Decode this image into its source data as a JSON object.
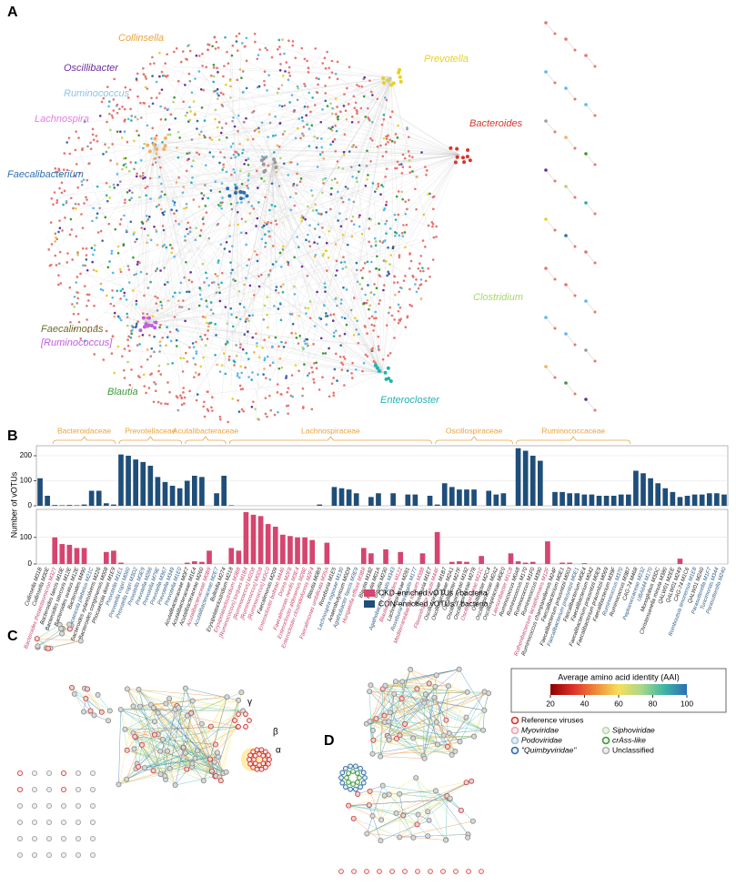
{
  "panel_a": {
    "letter": "A",
    "labels": [
      {
        "text": "Collinsella",
        "color": "#e8a33d"
      },
      {
        "text": "Oscillibacter",
        "color": "#6a2d9c"
      },
      {
        "text": "Ruminococcus",
        "color": "#8fc3e6"
      },
      {
        "text": "Lachnospira",
        "color": "#e57be0"
      },
      {
        "text": "Faecalibacterium",
        "color": "#2d6fb0"
      },
      {
        "text": "Faecalimonas",
        "color": "#6b6b2a"
      },
      {
        "text": "[Ruminococcus]",
        "color": "#c05ce0"
      },
      {
        "text": "Blautia",
        "color": "#3a9a35"
      },
      {
        "text": "Enterocloster",
        "color": "#1fb3b3"
      },
      {
        "text": "Clostridium",
        "color": "#a8d86a"
      },
      {
        "text": "Bacteroides",
        "color": "#d9352a"
      },
      {
        "text": "Prevotella",
        "color": "#e6d21e"
      }
    ]
  },
  "chart_data": {
    "type": "bar",
    "letter": "B",
    "ylabel": "Number of vOTUs",
    "categories": [
      "Collinsella M31B",
      "Collinsella M30E",
      "Bacteroides thetaiotaomicron M32T",
      "Bacteroides faecis M10E",
      "Bacteroides stercoris M12E",
      "Bacteroides ovatus M12E",
      "Bacteroides M490",
      "Phocaeicola plebeius M21C",
      "Bacteroides xylanisolvens M226",
      "Bacteroides congonensis M008",
      "Phocaeicola dorei M1E9",
      "Prevotella M1E1",
      "Prevotella copri M060",
      "Prevotella copri M3D2",
      "Prevotella M3E9",
      "Prevotella M286",
      "Prevotella M79E",
      "Prevotella M367",
      "Prevotella M349",
      "Prevotella M1E0",
      "Acutalibacteraceae M0F7",
      "Acutalibacteraceae M1E4",
      "Acutalibacteraceae M260",
      "Acutalibacteraceae M0B9",
      "Acutalibacteraceae M2E7",
      "Bulleidia M274",
      "Erysipelatoclostridium M218",
      "Erysipelatoclostridium M3B8",
      "[Ruminococcus] torques M1B4",
      "[Ruminococcus] M2D8",
      "[Ruminococcus] M0D8",
      "[Ruminococcus] M3C0",
      "Faecalimonas M209",
      "Enterocloster bolteae M446",
      "Dorea M2F8",
      "Faecalimonas nexilis M3E4",
      "Enterocloster aldenensis M28E",
      "Enterocloster clostridioformis M2F4",
      "Blautia M0B5",
      "Faecalimonas umbilicata M35A",
      "Roseburia M1E5",
      "Lachnospira rogosae M130",
      "Anaerobutyricum M0D9",
      "Agathobacter faecis M3E9",
      "Hungatella effluvii M3B8",
      "Blautia M182",
      "Blautia M01A",
      "Blautia M230",
      "Agathobacter rectalis M343",
      "Blautia coccoides M122",
      "Lachnospiraceae M281",
      "Roseburia intestinalis M177",
      "Mediterraneibacter torques M388",
      "Roseburia M1E7",
      "Flavonifractor plautii M44F",
      "Oscillospiraceae M1B7",
      "Oscillospiraceae M2A1",
      "Oscillibacter M27F",
      "Oscillospiraceae M192",
      "Oscillospiraceae M278",
      "Oscillospiraceae M21C",
      "Oscillibacter M2C4",
      "Oscillospiraceae M2A2",
      "Oscillospiraceae M0E0",
      "Lawsonibacter M1C8",
      "Ruminococcus M0A8",
      "Ruminococcus M170",
      "Ruminococcus M1F0",
      "Ruminococcus M390",
      "Ruthenibacterium lactatiformans M12F",
      "Ruminococcus champanellensis M24F",
      "Faecalibacterium M0E1",
      "Faecalibacterium prausnitzii M003",
      "Faecalibacterium prausnitzii M0E1",
      "Faecalibacterium M0E4",
      "Faecalibacterium M042",
      "Faecalibacterium prausnitzii M0E9",
      "Faecalibacterium prausnitzii M069",
      "Faecalibacterium M39F",
      "Ruminococcus M370",
      "Ruminococcus M3B7",
      "CAG-74 M468",
      "Peptococcaceae M232",
      "UBA644 M170",
      "Monoglobus M3DC",
      "Christensenella minuta M380",
      "QALW01 M2EE",
      "QALW01 M249",
      "CAG-74 M1C6",
      "Romboutsia timonensis M1E8",
      "QALW01 M2A0",
      "Parasutterella M1F7",
      "Turicimonas M344",
      "Parasutterella M240"
    ],
    "label_colors": [
      "#222",
      "#222",
      "#c8446a",
      "#222",
      "#222",
      "#222",
      "#222",
      "#2e5d87",
      "#222",
      "#222",
      "#222",
      "#2e5d87",
      "#2e5d87",
      "#2e5d87",
      "#2e5d87",
      "#2e5d87",
      "#2e5d87",
      "#2e5d87",
      "#2e5d87",
      "#2e5d87",
      "#222",
      "#222",
      "#222",
      "#c8446a",
      "#2e5d87",
      "#222",
      "#222",
      "#c8446a",
      "#c8446a",
      "#c8446a",
      "#c8446a",
      "#c8446a",
      "#222",
      "#c8446a",
      "#c8446a",
      "#c8446a",
      "#c8446a",
      "#c8446a",
      "#222",
      "#c8446a",
      "#222",
      "#2e5d87",
      "#222",
      "#2e5d87",
      "#c8446a",
      "#222",
      "#222",
      "#222",
      "#2e5d87",
      "#c8446a",
      "#222",
      "#2e5d87",
      "#c8446a",
      "#222",
      "#c8446a",
      "#222",
      "#222",
      "#222",
      "#222",
      "#222",
      "#c8446a",
      "#222",
      "#222",
      "#222",
      "#c8446a",
      "#222",
      "#222",
      "#222",
      "#222",
      "#c8446a",
      "#222",
      "#222",
      "#222",
      "#2e5d87",
      "#222",
      "#222",
      "#222",
      "#222",
      "#222",
      "#2e5d87",
      "#222",
      "#222",
      "#2e5d87",
      "#2e5d87",
      "#222",
      "#222",
      "#222",
      "#222",
      "#222",
      "#2e5d87",
      "#222",
      "#2e5d87",
      "#2e5d87",
      "#2e5d87"
    ],
    "family": [
      null,
      null,
      "Bacteroidaceae",
      "Bacteroidaceae",
      "Bacteroidaceae",
      "Bacteroidaceae",
      "Bacteroidaceae",
      "Bacteroidaceae",
      "Bacteroidaceae",
      "Bacteroidaceae",
      "Bacteroidaceae",
      "Prevotellaceae",
      "Prevotellaceae",
      "Prevotellaceae",
      "Prevotellaceae",
      "Prevotellaceae",
      "Prevotellaceae",
      "Prevotellaceae",
      "Prevotellaceae",
      "Prevotellaceae",
      "Acutalibacteraceae",
      "Acutalibacteraceae",
      "Acutalibacteraceae",
      "Acutalibacteraceae",
      "Acutalibacteraceae",
      "Acutalibacteraceae",
      "Lachnospiraceae",
      "Lachnospiraceae",
      "Lachnospiraceae",
      "Lachnospiraceae",
      "Lachnospiraceae",
      "Lachnospiraceae",
      "Lachnospiraceae",
      "Lachnospiraceae",
      "Lachnospiraceae",
      "Lachnospiraceae",
      "Lachnospiraceae",
      "Lachnospiraceae",
      "Lachnospiraceae",
      "Lachnospiraceae",
      "Lachnospiraceae",
      "Lachnospiraceae",
      "Lachnospiraceae",
      "Lachnospiraceae",
      "Lachnospiraceae",
      "Lachnospiraceae",
      "Lachnospiraceae",
      "Lachnospiraceae",
      "Lachnospiraceae",
      "Lachnospiraceae",
      "Lachnospiraceae",
      "Lachnospiraceae",
      "Lachnospiraceae",
      "Lachnospiraceae",
      "Oscillospiraceae",
      "Oscillospiraceae",
      "Oscillospiraceae",
      "Oscillospiraceae",
      "Oscillospiraceae",
      "Oscillospiraceae",
      "Oscillospiraceae",
      "Oscillospiraceae",
      "Oscillospiraceae",
      "Oscillospiraceae",
      "Oscillospiraceae",
      "Ruminococcaceae",
      "Ruminococcaceae",
      "Ruminococcaceae",
      "Ruminococcaceae",
      "Ruminococcaceae",
      "Ruminococcaceae",
      "Ruminococcaceae",
      "Ruminococcaceae",
      "Ruminococcaceae",
      "Ruminococcaceae",
      "Ruminococcaceae",
      "Ruminococcaceae",
      "Ruminococcaceae",
      "Ruminococcaceae",
      "Ruminococcaceae",
      "Ruminococcaceae",
      null,
      null,
      null,
      null,
      null,
      null,
      null,
      null,
      null,
      null,
      null,
      null,
      null
    ],
    "family_color": "#e8a33d",
    "series": [
      {
        "name": "CKD-enriched vOTUs / bacteria",
        "color": "#d6456f",
        "panel": "bottom",
        "ylim": [
          0,
          205
        ],
        "yticks": [
          0,
          100
        ],
        "values": [
          0,
          0,
          100,
          75,
          72,
          60,
          60,
          0,
          0,
          45,
          50,
          5,
          0,
          0,
          0,
          0,
          0,
          0,
          0,
          0,
          5,
          10,
          8,
          50,
          0,
          0,
          60,
          50,
          195,
          185,
          180,
          150,
          140,
          110,
          105,
          100,
          100,
          90,
          0,
          80,
          0,
          0,
          0,
          0,
          60,
          40,
          0,
          55,
          0,
          45,
          0,
          0,
          40,
          0,
          120,
          0,
          8,
          10,
          8,
          0,
          30,
          0,
          0,
          0,
          40,
          10,
          5,
          8,
          0,
          85,
          0,
          5,
          5,
          0,
          3,
          0,
          0,
          0,
          0,
          0,
          0,
          0,
          0,
          0,
          0,
          0,
          0,
          20,
          0,
          0,
          0,
          0,
          0,
          0
        ]
      },
      {
        "name": "CON-enriched vOTUs / bacteria",
        "color": "#1f4e79",
        "panel": "top",
        "ylim": [
          0,
          240
        ],
        "yticks": [
          0,
          100,
          200
        ],
        "values": [
          110,
          40,
          3,
          2,
          3,
          2,
          5,
          60,
          60,
          10,
          5,
          205,
          200,
          185,
          175,
          160,
          115,
          95,
          80,
          70,
          100,
          120,
          115,
          0,
          50,
          120,
          2,
          0,
          0,
          0,
          0,
          0,
          0,
          0,
          0,
          0,
          0,
          0,
          5,
          0,
          75,
          70,
          65,
          50,
          0,
          35,
          50,
          0,
          50,
          0,
          45,
          45,
          0,
          40,
          5,
          90,
          75,
          65,
          65,
          65,
          0,
          60,
          45,
          50,
          0,
          230,
          220,
          200,
          180,
          0,
          55,
          55,
          50,
          50,
          45,
          45,
          40,
          40,
          40,
          45,
          45,
          140,
          130,
          110,
          90,
          70,
          55,
          35,
          40,
          45,
          45,
          50,
          50,
          45
        ]
      }
    ]
  },
  "panel_c": {
    "letter": "C",
    "labels": [
      "γ",
      "β",
      "α"
    ]
  },
  "panel_d": {
    "letter": "D"
  },
  "legend": {
    "title": "Average amino acid identity (AAI)",
    "colorbar": {
      "colors": [
        "#8b0000",
        "#e0302a",
        "#f08a3a",
        "#f5e05a",
        "#a8d88a",
        "#3fb5a5",
        "#2a6fb5"
      ],
      "lim": [
        20,
        100
      ],
      "ticks": [
        20,
        40,
        60,
        80,
        100
      ]
    },
    "entries": [
      {
        "label": "Reference viruses",
        "color": "#e0302a"
      },
      {
        "label": "Myoviridae",
        "color": "#f0a0b0"
      },
      {
        "label": "Siphoviridae",
        "color": "#b8dca0"
      },
      {
        "label": "Podoviridae",
        "color": "#9ec5e0"
      },
      {
        "label": "crAss-like",
        "color": "#3a9a35"
      },
      {
        "label": "\"Quimbyviridae\"",
        "color": "#2e6fb0"
      },
      {
        "label": "Unclassified",
        "color": "#b0b0b0"
      }
    ]
  }
}
